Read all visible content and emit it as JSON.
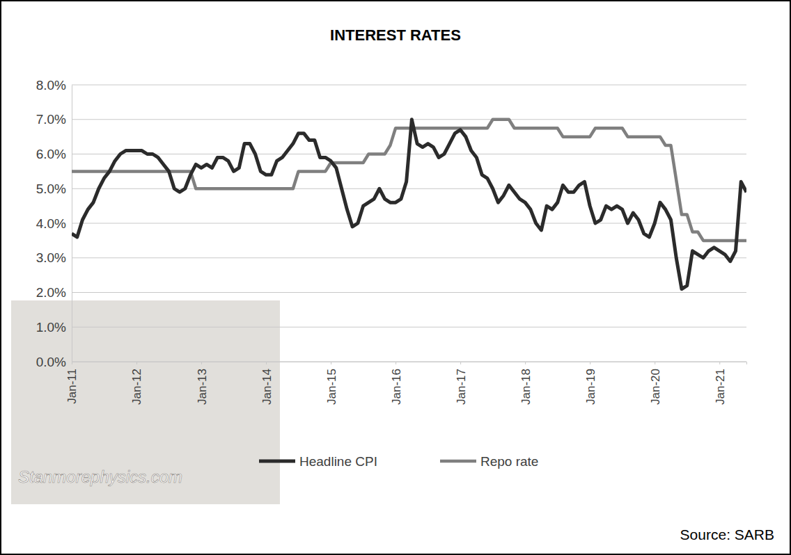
{
  "chart_data": {
    "type": "line",
    "title": "INTEREST RATES",
    "annotations": [
      "Source: SARB",
      "Stanmorephysics.com"
    ],
    "categories": [
      "Jan-11",
      null,
      null,
      null,
      null,
      null,
      null,
      null,
      null,
      null,
      null,
      null,
      "Jan-12",
      null,
      null,
      null,
      null,
      null,
      null,
      null,
      null,
      null,
      null,
      null,
      "Jan-13",
      null,
      null,
      null,
      null,
      null,
      null,
      null,
      null,
      null,
      null,
      null,
      "Jan-14",
      null,
      null,
      null,
      null,
      null,
      null,
      null,
      null,
      null,
      null,
      null,
      "Jan-15",
      null,
      null,
      null,
      null,
      null,
      null,
      null,
      null,
      null,
      null,
      null,
      "Jan-16",
      null,
      null,
      null,
      null,
      null,
      null,
      null,
      null,
      null,
      null,
      null,
      "Jan-17",
      null,
      null,
      null,
      null,
      null,
      null,
      null,
      null,
      null,
      null,
      null,
      "Jan-18",
      null,
      null,
      null,
      null,
      null,
      null,
      null,
      null,
      null,
      null,
      null,
      "Jan-19",
      null,
      null,
      null,
      null,
      null,
      null,
      null,
      null,
      null,
      null,
      null,
      "Jan-20",
      null,
      null,
      null,
      null,
      null,
      null,
      null,
      null,
      null,
      null,
      null,
      "Jan-21",
      null,
      null,
      null,
      null,
      null
    ],
    "series": [
      {
        "name": "Headline CPI",
        "color": "#2b2b2b",
        "values": [
          3.7,
          3.6,
          4.1,
          4.4,
          4.6,
          5.0,
          5.3,
          5.5,
          5.8,
          6.0,
          6.1,
          6.1,
          6.1,
          6.1,
          6.0,
          6.0,
          5.9,
          5.7,
          5.5,
          5.0,
          4.9,
          5.0,
          5.4,
          5.7,
          5.6,
          5.7,
          5.6,
          5.9,
          5.9,
          5.8,
          5.5,
          5.6,
          6.3,
          6.3,
          6.0,
          5.5,
          5.4,
          5.4,
          5.8,
          5.9,
          6.1,
          6.3,
          6.6,
          6.6,
          6.4,
          6.4,
          5.9,
          5.9,
          5.8,
          5.6,
          5.0,
          4.4,
          3.9,
          4.0,
          4.5,
          4.6,
          4.7,
          5.0,
          4.7,
          4.6,
          4.6,
          4.7,
          5.2,
          7.0,
          6.3,
          6.2,
          6.3,
          6.2,
          5.9,
          6.0,
          6.3,
          6.6,
          6.7,
          6.5,
          6.1,
          5.9,
          5.4,
          5.3,
          5.0,
          4.6,
          4.8,
          5.1,
          4.9,
          4.7,
          4.6,
          4.4,
          4.0,
          3.8,
          4.5,
          4.4,
          4.6,
          5.1,
          4.9,
          4.9,
          5.1,
          5.2,
          4.5,
          4.0,
          4.1,
          4.5,
          4.4,
          4.5,
          4.4,
          4.0,
          4.3,
          4.1,
          3.7,
          3.6,
          4.0,
          4.6,
          4.4,
          4.1,
          3.0,
          2.1,
          2.2,
          3.2,
          3.1,
          3.0,
          3.2,
          3.3,
          3.2,
          3.1,
          2.9,
          3.2,
          5.2,
          4.9
        ]
      },
      {
        "name": "Repo rate",
        "color": "#7f7f7f",
        "values": [
          5.5,
          5.5,
          5.5,
          5.5,
          5.5,
          5.5,
          5.5,
          5.5,
          5.5,
          5.5,
          5.5,
          5.5,
          5.5,
          5.5,
          5.5,
          5.5,
          5.5,
          5.5,
          5.5,
          5.5,
          5.5,
          5.5,
          5.5,
          5.0,
          5.0,
          5.0,
          5.0,
          5.0,
          5.0,
          5.0,
          5.0,
          5.0,
          5.0,
          5.0,
          5.0,
          5.0,
          5.0,
          5.0,
          5.0,
          5.0,
          5.0,
          5.0,
          5.5,
          5.5,
          5.5,
          5.5,
          5.5,
          5.5,
          5.75,
          5.75,
          5.75,
          5.75,
          5.75,
          5.75,
          5.75,
          6.0,
          6.0,
          6.0,
          6.0,
          6.25,
          6.75,
          6.75,
          6.75,
          6.75,
          6.75,
          6.75,
          6.75,
          6.75,
          6.75,
          6.75,
          6.75,
          6.75,
          6.75,
          6.75,
          6.75,
          6.75,
          6.75,
          6.75,
          7.0,
          7.0,
          7.0,
          7.0,
          6.75,
          6.75,
          6.75,
          6.75,
          6.75,
          6.75,
          6.75,
          6.75,
          6.75,
          6.5,
          6.5,
          6.5,
          6.5,
          6.5,
          6.5,
          6.75,
          6.75,
          6.75,
          6.75,
          6.75,
          6.75,
          6.5,
          6.5,
          6.5,
          6.5,
          6.5,
          6.5,
          6.5,
          6.25,
          6.25,
          5.25,
          4.25,
          4.25,
          3.75,
          3.75,
          3.5,
          3.5,
          3.5,
          3.5,
          3.5,
          3.5,
          3.5,
          3.5,
          3.5
        ]
      }
    ],
    "ylim": [
      0,
      8
    ],
    "yticks": [
      {
        "value": 0,
        "label": "0.0%"
      },
      {
        "value": 1,
        "label": "1.0%"
      },
      {
        "value": 2,
        "label": "2.0%"
      },
      {
        "value": 3,
        "label": "3.0%"
      },
      {
        "value": 4,
        "label": "4.0%"
      },
      {
        "value": 5,
        "label": "5.0%"
      },
      {
        "value": 6,
        "label": "6.0%"
      },
      {
        "value": 7,
        "label": "7.0%"
      },
      {
        "value": 8,
        "label": "8.0%"
      }
    ],
    "grid": true,
    "legend": "bottom"
  }
}
